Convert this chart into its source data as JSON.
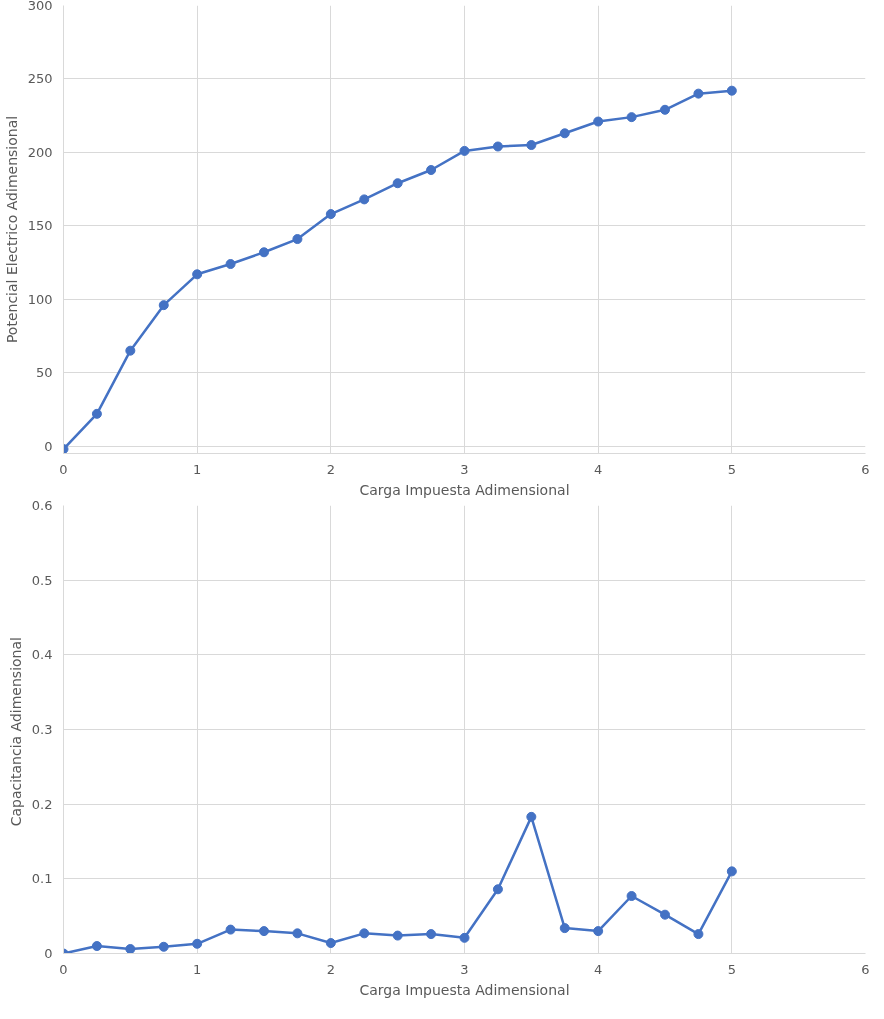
{
  "chart_data": [
    {
      "type": "line",
      "xlabel": "Carga Impuesta Adimensional",
      "ylabel": "Potencial Electrico Adimensional",
      "x": [
        0,
        0.25,
        0.5,
        0.75,
        1,
        1.25,
        1.5,
        1.75,
        2,
        2.25,
        2.5,
        2.75,
        3,
        3.25,
        3.5,
        3.75,
        4,
        4.25,
        4.5,
        4.75,
        5
      ],
      "series": [
        {
          "color": "#4472c4",
          "values": [
            -2,
            22,
            65,
            96,
            117,
            124,
            132,
            141,
            158,
            168,
            179,
            188,
            201,
            204,
            205,
            213,
            221,
            224,
            229,
            240,
            242
          ]
        }
      ],
      "xlim": [
        0,
        6
      ],
      "xticks": [
        0,
        1,
        2,
        3,
        4,
        5,
        6
      ],
      "ylim": [
        -5,
        300
      ],
      "yticks": [
        0,
        50,
        100,
        150,
        200,
        250,
        300
      ],
      "grid": true,
      "marker": "circle",
      "line_style": "solid"
    },
    {
      "type": "line",
      "xlabel": "Carga Impuesta Adimensional",
      "ylabel": "Capacitancia  Adimensional",
      "x": [
        0,
        0.25,
        0.5,
        0.75,
        1,
        1.25,
        1.5,
        1.75,
        2,
        2.25,
        2.5,
        2.75,
        3,
        3.25,
        3.5,
        3.75,
        4,
        4.25,
        4.5,
        4.75,
        5
      ],
      "series": [
        {
          "color": "#4472c4",
          "values": [
            0.0,
            0.01,
            0.006,
            0.009,
            0.013,
            0.032,
            0.03,
            0.027,
            0.014,
            0.027,
            0.024,
            0.026,
            0.021,
            0.086,
            0.183,
            0.034,
            0.03,
            0.077,
            0.052,
            0.026,
            0.11
          ]
        }
      ],
      "xlim": [
        0,
        6
      ],
      "xticks": [
        0,
        1,
        2,
        3,
        4,
        5,
        6
      ],
      "ylim": [
        0,
        0.6
      ],
      "yticks": [
        0,
        0.1,
        0.2,
        0.3,
        0.4,
        0.5,
        0.6
      ],
      "grid": true,
      "marker": "circle",
      "line_style": "solid"
    }
  ]
}
